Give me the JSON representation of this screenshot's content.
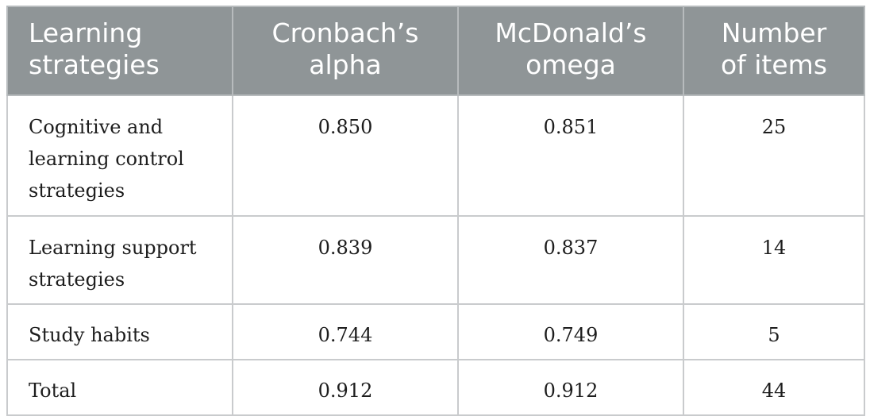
{
  "table": {
    "headers": [
      [
        "Learning",
        "strategies"
      ],
      [
        "Cronbach’s",
        "alpha"
      ],
      [
        "McDonald’s",
        "omega"
      ],
      [
        "Number",
        "of items"
      ]
    ],
    "rows": [
      {
        "strategy": "Cognitive and learning control strategies",
        "alpha": "0.850",
        "omega": "0.851",
        "items": "25"
      },
      {
        "strategy": "Learning support strategies",
        "alpha": "0.839",
        "omega": "0.837",
        "items": "14"
      },
      {
        "strategy": "Study habits",
        "alpha": "0.744",
        "omega": "0.749",
        "items": "5"
      },
      {
        "strategy": "Total",
        "alpha": "0.912",
        "omega": "0.912",
        "items": "44"
      }
    ]
  }
}
